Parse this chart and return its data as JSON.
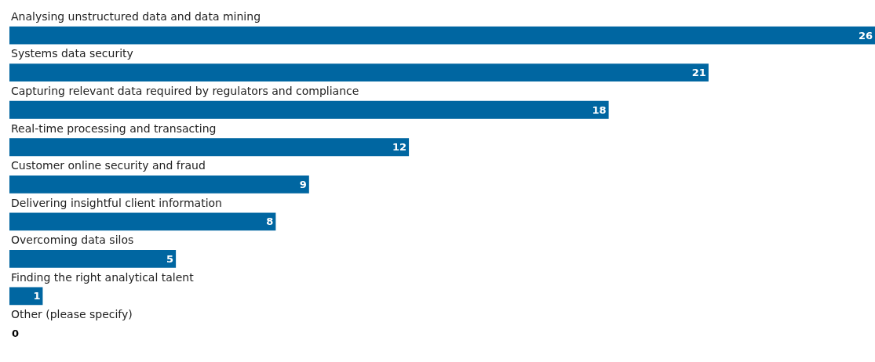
{
  "chart_data": {
    "type": "bar",
    "orientation": "horizontal",
    "categories": [
      "Analysing unstructured data and data mining",
      "Systems data security",
      "Capturing relevant data required by regulators and compliance",
      "Real-time processing and transacting",
      "Customer online security and fraud",
      "Delivering insightful client information",
      "Overcoming data silos",
      "Finding the right analytical talent",
      "Other (please specify)"
    ],
    "values": [
      26,
      21,
      18,
      12,
      9,
      8,
      5,
      1,
      0
    ],
    "color": "#0066a1",
    "xlim": [
      0,
      26
    ],
    "data_labels": true,
    "tick_labels": false
  }
}
